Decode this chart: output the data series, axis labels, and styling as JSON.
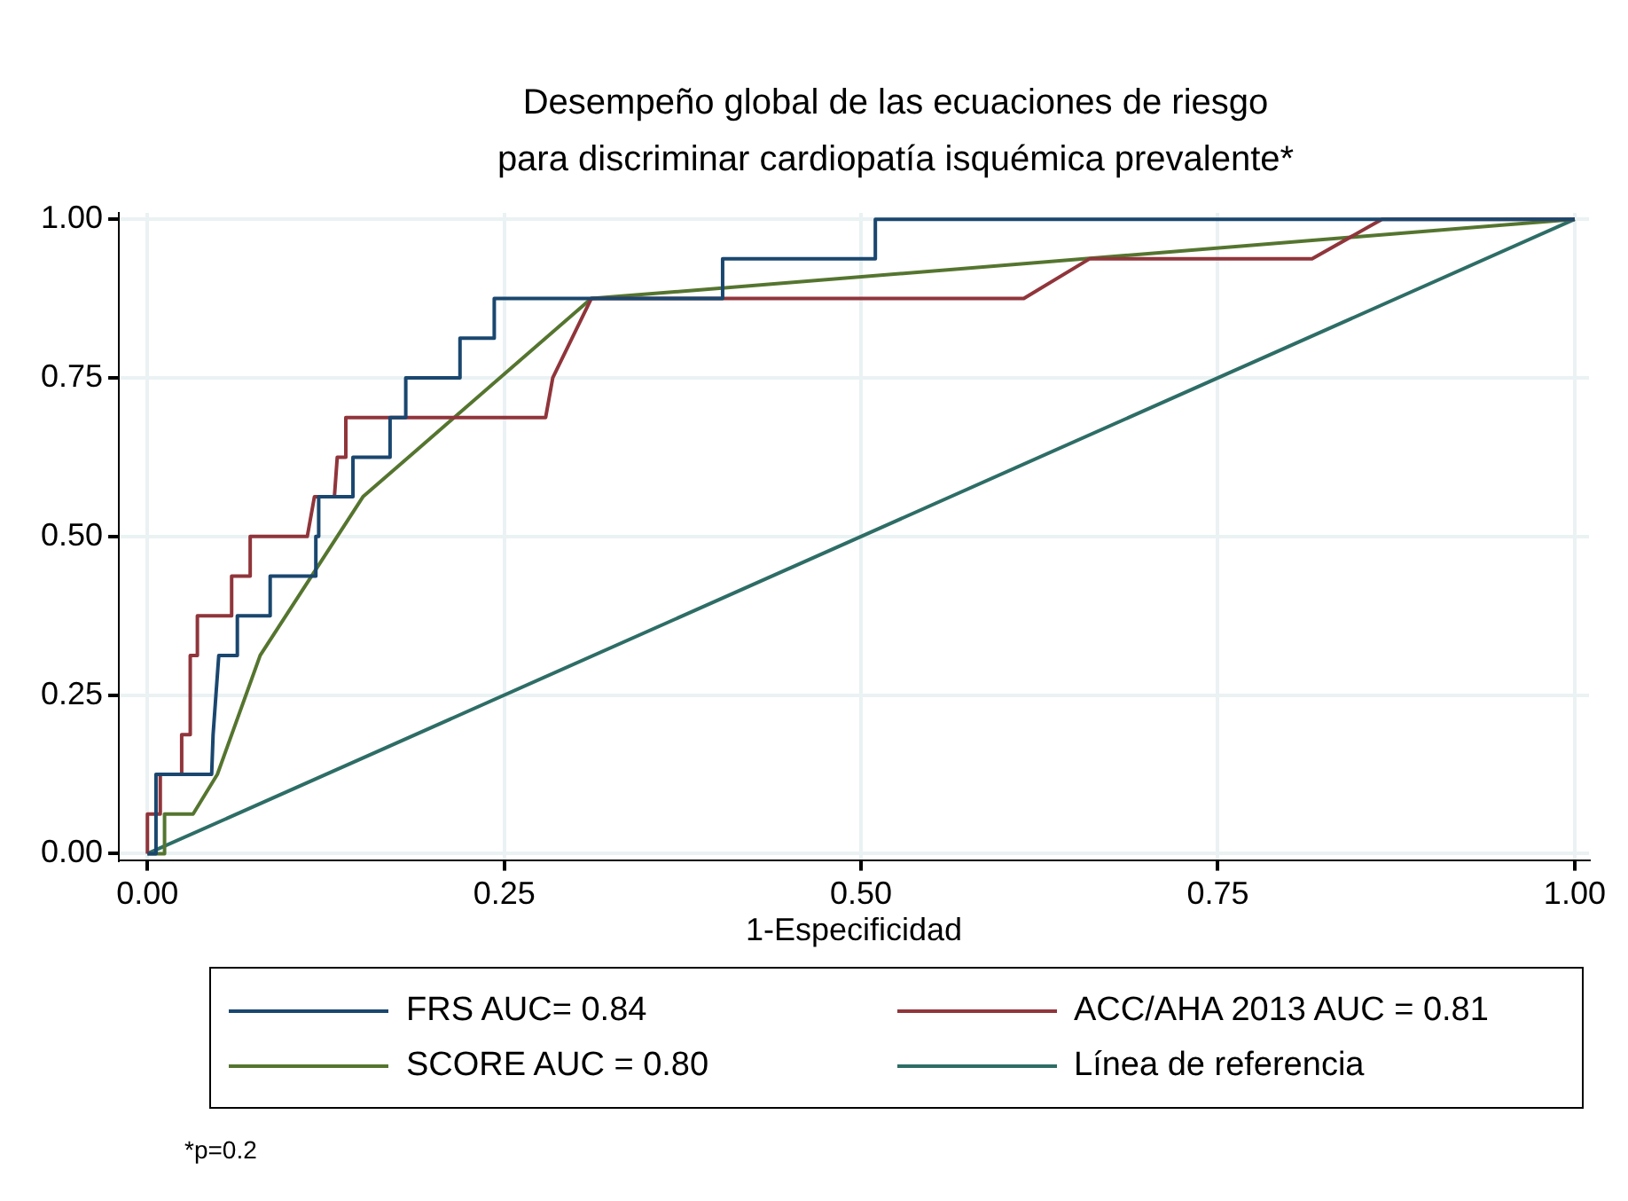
{
  "chart_data": {
    "type": "line",
    "title": "Desempeño global de las ecuaciones de riesgo\npara discriminar cardiopatía isquémica prevalente*",
    "xlabel": "1-Especificidad",
    "xlim": [
      -0.02,
      1.01
    ],
    "ylim": [
      -0.01,
      1.01
    ],
    "xticks": [
      {
        "value": 0,
        "label": "0.00"
      },
      {
        "value": 0.25,
        "label": "0.25"
      },
      {
        "value": 0.5,
        "label": "0.50"
      },
      {
        "value": 0.75,
        "label": "0.75"
      },
      {
        "value": 1,
        "label": "1.00"
      }
    ],
    "yticks": [
      {
        "value": 0,
        "label": "0.00"
      },
      {
        "value": 0.25,
        "label": "0.25"
      },
      {
        "value": 0.5,
        "label": "0.50"
      },
      {
        "value": 0.75,
        "label": "0.75"
      },
      {
        "value": 1,
        "label": "1.00"
      }
    ],
    "grid": true,
    "legend": "bottom",
    "marker": "none",
    "line_style": "solid",
    "series": [
      {
        "name": "FRS AUC= 0.84",
        "color": "#1a476f",
        "x": [
          0,
          0.006,
          0.006,
          0.045,
          0.046,
          0.048,
          0.05,
          0.063,
          0.063,
          0.086,
          0.086,
          0.118,
          0.118,
          0.12,
          0.12,
          0.144,
          0.144,
          0.17,
          0.17,
          0.181,
          0.181,
          0.219,
          0.219,
          0.243,
          0.243,
          0.403,
          0.403,
          0.51,
          0.51,
          1
        ],
        "values": [
          0,
          0,
          0.125,
          0.125,
          0.1875,
          0.25,
          0.3125,
          0.3125,
          0.375,
          0.375,
          0.4375,
          0.4375,
          0.5,
          0.5,
          0.5625,
          0.5625,
          0.625,
          0.625,
          0.6875,
          0.6875,
          0.75,
          0.75,
          0.8125,
          0.8125,
          0.875,
          0.875,
          0.9375,
          0.9375,
          1,
          1
        ]
      },
      {
        "name": "ACC/AHA 2013 AUC = 0.81",
        "color": "#90353b",
        "x": [
          0,
          0,
          0.009,
          0.009,
          0.024,
          0.024,
          0.03,
          0.03,
          0.035,
          0.035,
          0.059,
          0.059,
          0.072,
          0.072,
          0.112,
          0.117,
          0.131,
          0.133,
          0.139,
          0.139,
          0.279,
          0.284,
          0.311,
          0.614,
          0.66,
          0.816,
          0.865,
          1
        ],
        "values": [
          0,
          0.0625,
          0.0625,
          0.125,
          0.125,
          0.1875,
          0.1875,
          0.3125,
          0.3125,
          0.375,
          0.375,
          0.4375,
          0.4375,
          0.5,
          0.5,
          0.5625,
          0.5625,
          0.625,
          0.625,
          0.6875,
          0.6875,
          0.75,
          0.875,
          0.875,
          0.9375,
          0.9375,
          1,
          1
        ]
      },
      {
        "name": "SCORE AUC = 0.80",
        "color": "#55752f",
        "x": [
          0,
          0.012,
          0.012,
          0.032,
          0.049,
          0.079,
          0.151,
          0.311,
          1
        ],
        "values": [
          0,
          0,
          0.0625,
          0.0625,
          0.125,
          0.3125,
          0.5625,
          0.875,
          1
        ]
      },
      {
        "name": "Línea de referencia",
        "color": "#2d6d66",
        "x": [
          0,
          1
        ],
        "values": [
          0,
          1
        ]
      }
    ],
    "annotations": [
      "*p=0.2"
    ]
  }
}
